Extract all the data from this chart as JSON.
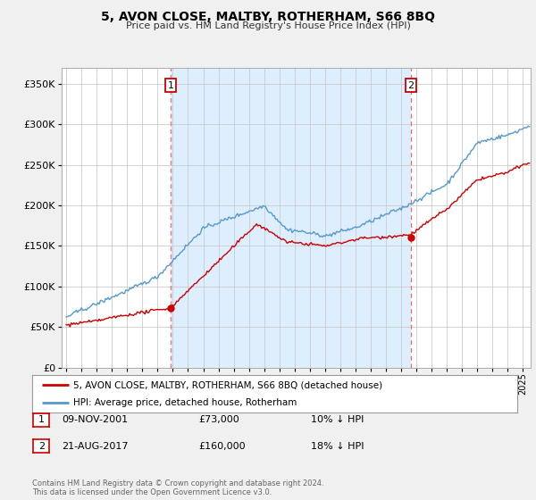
{
  "title": "5, AVON CLOSE, MALTBY, ROTHERHAM, S66 8BQ",
  "subtitle": "Price paid vs. HM Land Registry's House Price Index (HPI)",
  "ylabel_ticks": [
    "£0",
    "£50K",
    "£100K",
    "£150K",
    "£200K",
    "£250K",
    "£300K",
    "£350K"
  ],
  "ylabel_values": [
    0,
    50000,
    100000,
    150000,
    200000,
    250000,
    300000,
    350000
  ],
  "ylim": [
    0,
    370000
  ],
  "xlim_start": 1994.7,
  "xlim_end": 2025.5,
  "sale1_x": 2001.86,
  "sale1_y": 73000,
  "sale1_label": "1",
  "sale1_date": "09-NOV-2001",
  "sale1_price": "£73,000",
  "sale1_hpi": "10% ↓ HPI",
  "sale2_x": 2017.64,
  "sale2_y": 160000,
  "sale2_label": "2",
  "sale2_date": "21-AUG-2017",
  "sale2_price": "£160,000",
  "sale2_hpi": "18% ↓ HPI",
  "red_line_color": "#cc0000",
  "blue_line_color": "#5599cc",
  "shade_color": "#ddeeff",
  "grid_color": "#cccccc",
  "background_color": "#f0f0f0",
  "plot_bg_color": "#ffffff",
  "sale_marker_color": "#cc0000",
  "vline_color": "#ff6666",
  "legend_line1": "5, AVON CLOSE, MALTBY, ROTHERHAM, S66 8BQ (detached house)",
  "legend_line2": "HPI: Average price, detached house, Rotherham",
  "footer1": "Contains HM Land Registry data © Crown copyright and database right 2024.",
  "footer2": "This data is licensed under the Open Government Licence v3.0."
}
